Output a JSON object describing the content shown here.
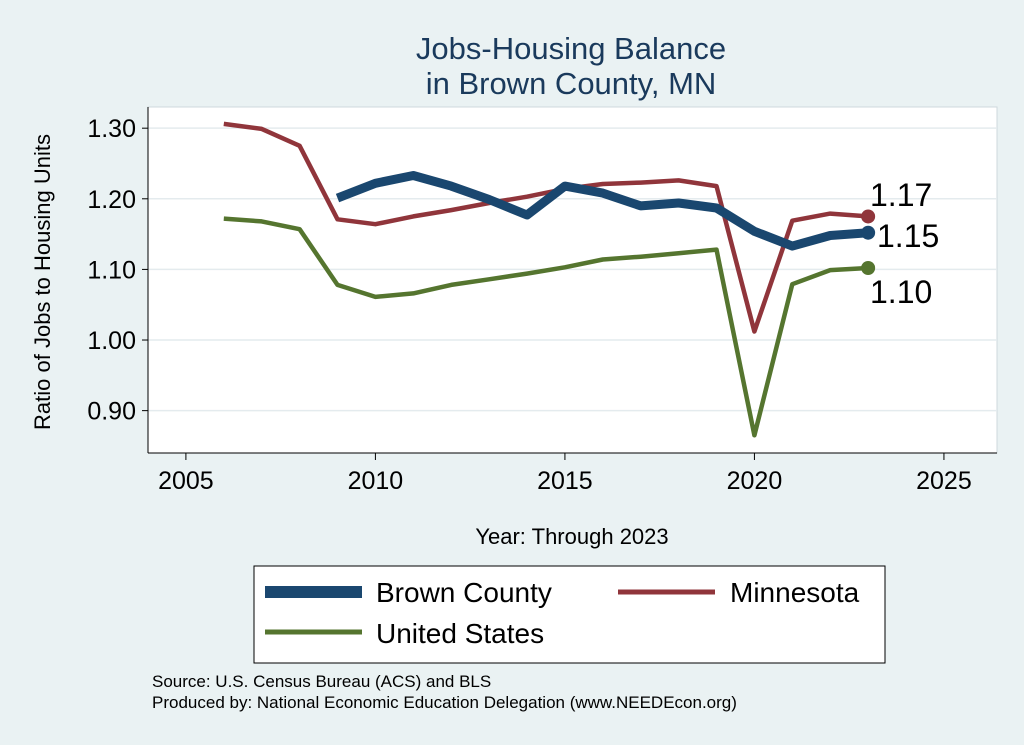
{
  "chart_data": {
    "type": "line",
    "title": [
      "Jobs-Housing Balance",
      "in Brown County, MN"
    ],
    "xlabel": "Year: Through 2023",
    "ylabel": "Ratio of Jobs to Housing Units",
    "xlim": [
      2004,
      2026.4
    ],
    "ylim": [
      0.84,
      1.33
    ],
    "xticks": [
      2005,
      2010,
      2015,
      2020,
      2025
    ],
    "yticks": [
      0.9,
      1.0,
      1.1,
      1.2,
      1.3
    ],
    "ytick_labels": [
      "0.90",
      "1.00",
      "1.10",
      "1.20",
      "1.30"
    ],
    "grid": true,
    "legend_position": "bottom",
    "series": [
      {
        "name": "Brown County",
        "color": "#1a476f",
        "line_width": "thick",
        "x": [
          2009,
          2010,
          2011,
          2012,
          2013,
          2014,
          2015,
          2016,
          2017,
          2018,
          2019,
          2020,
          2021,
          2022,
          2023
        ],
        "values": [
          1.201,
          1.222,
          1.233,
          1.218,
          1.199,
          1.177,
          1.218,
          1.208,
          1.19,
          1.194,
          1.187,
          1.154,
          1.133,
          1.148,
          1.152
        ],
        "end_label": "1.15"
      },
      {
        "name": "Minnesota",
        "color": "#90353b",
        "line_width": "medium",
        "x": [
          2006,
          2007,
          2008,
          2009,
          2010,
          2011,
          2012,
          2013,
          2014,
          2015,
          2016,
          2017,
          2018,
          2019,
          2020,
          2021,
          2022,
          2023
        ],
        "values": [
          1.306,
          1.299,
          1.275,
          1.171,
          1.164,
          1.175,
          1.184,
          1.194,
          1.203,
          1.214,
          1.221,
          1.223,
          1.226,
          1.218,
          1.012,
          1.169,
          1.179,
          1.175
        ],
        "end_label": "1.17"
      },
      {
        "name": "United States",
        "color": "#55752f",
        "line_width": "medium",
        "x": [
          2006,
          2007,
          2008,
          2009,
          2010,
          2011,
          2012,
          2013,
          2014,
          2015,
          2016,
          2017,
          2018,
          2019,
          2020,
          2021,
          2022,
          2023
        ],
        "values": [
          1.172,
          1.168,
          1.157,
          1.078,
          1.061,
          1.066,
          1.078,
          1.086,
          1.094,
          1.103,
          1.114,
          1.118,
          1.123,
          1.128,
          0.865,
          1.079,
          1.099,
          1.102
        ],
        "end_label": "1.10"
      }
    ]
  },
  "source_note": "Source: U.S. Census Bureau (ACS) and BLS",
  "producer_note": "Produced by: National Economic Education Delegation (www.NEEDEcon.org)"
}
